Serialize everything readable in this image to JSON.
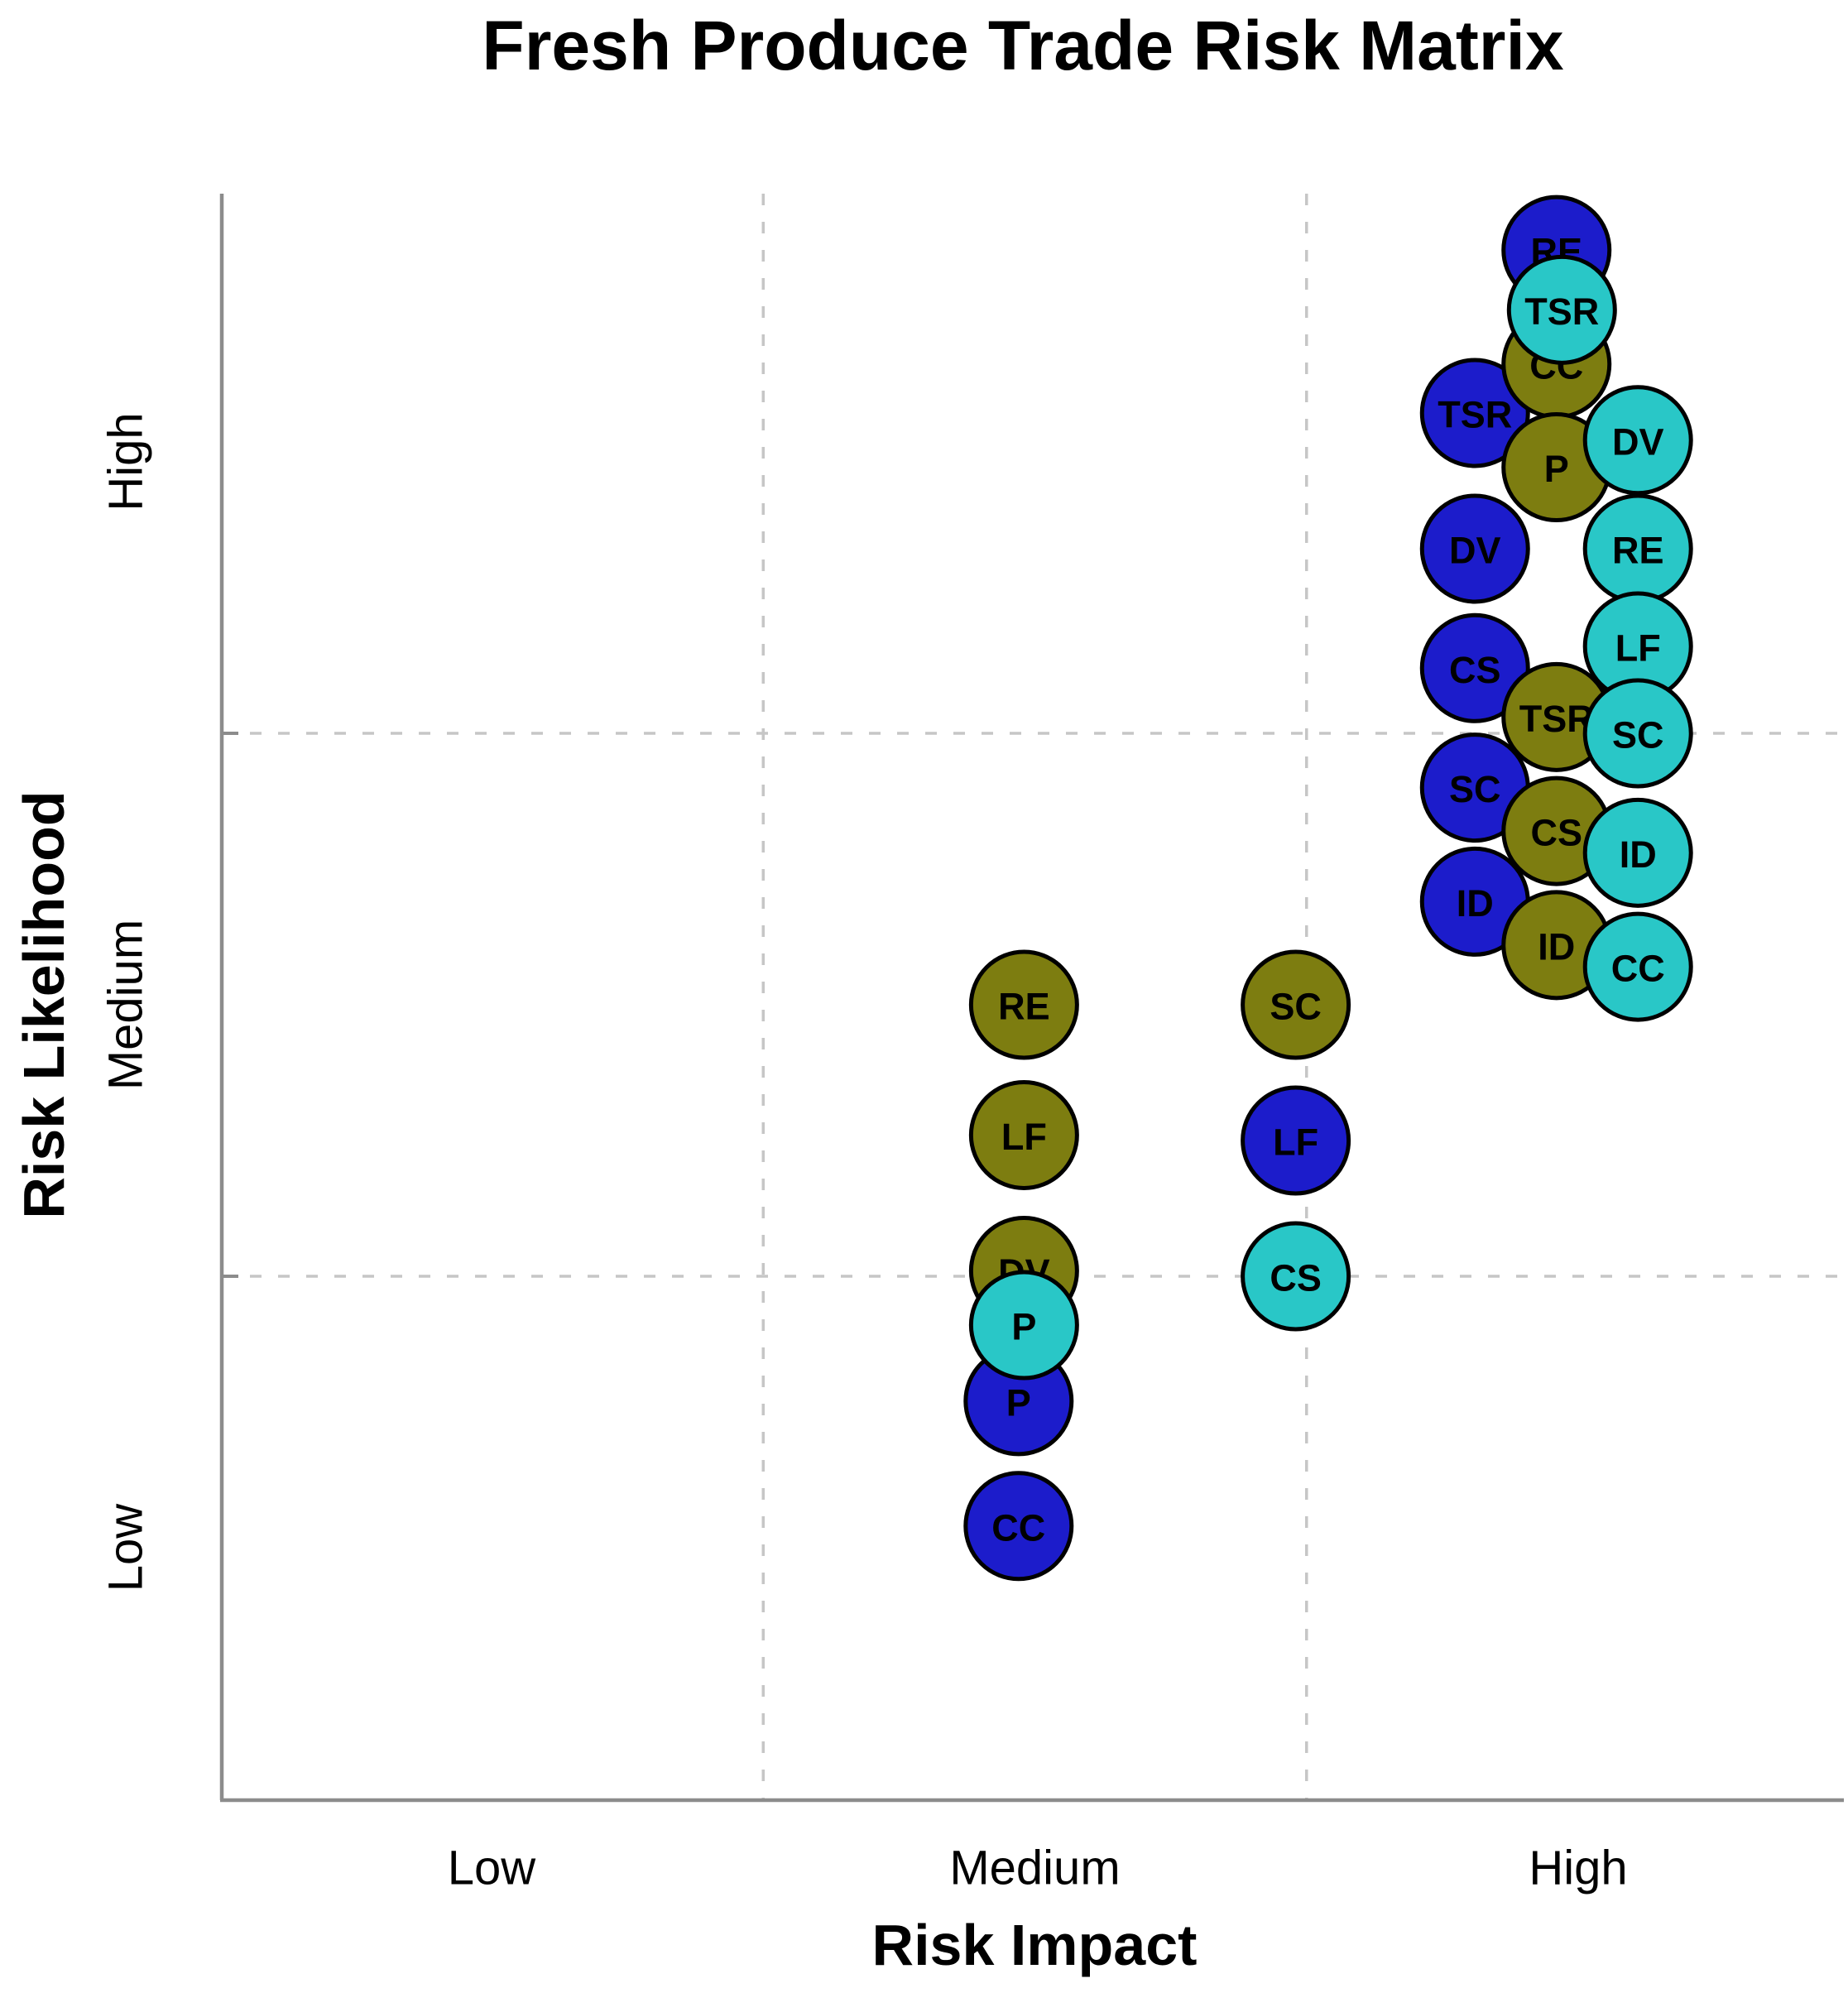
{
  "page": {
    "background": "#ffffff"
  },
  "colors": {
    "series_blue": "#1c1ccb",
    "series_olive": "#7d7d10",
    "series_teal": "#29c7c7",
    "bubble_outline": "#000000",
    "grid_gray": "#c6c6c6",
    "axis_gray": "#8c8c8c",
    "text_black": "#000000",
    "label_on_blue": "#ffffff",
    "label_on_olive": "#ffffff",
    "label_on_teal": "#000000"
  },
  "chart_data": {
    "type": "scatter",
    "subtype": "risk-matrix-bubble",
    "title": "Fresh Produce Trade Risk Matrix",
    "xlabel": "Risk Impact",
    "ylabel": "Risk Likelihood",
    "x_categories": [
      {
        "label": "Low",
        "value": 1
      },
      {
        "label": "Medium",
        "value": 2
      },
      {
        "label": "High",
        "value": 3
      }
    ],
    "y_categories": [
      {
        "label": "Low",
        "value": 1
      },
      {
        "label": "Medium",
        "value": 2
      },
      {
        "label": "High",
        "value": 3
      }
    ],
    "xlim": [
      0.5,
      3.5
    ],
    "ylim": [
      0.5,
      3.5
    ],
    "grid": {
      "x_values": [
        1.5,
        2.5
      ],
      "y_values": [
        1.5,
        2.5
      ],
      "style": "dashed"
    },
    "legend": "none",
    "marker": {
      "shape": "circle",
      "outline": "#000000",
      "labels_inside": true
    },
    "series": [
      {
        "name": "blue",
        "color": "#1c1ccb",
        "label_color": "#ffffff",
        "points": [
          {
            "label": "RE",
            "x": 2.96,
            "y": 3.39
          },
          {
            "label": "TSR",
            "x": 2.81,
            "y": 3.09
          },
          {
            "label": "DV",
            "x": 2.81,
            "y": 2.84
          },
          {
            "label": "CS",
            "x": 2.81,
            "y": 2.62
          },
          {
            "label": "SC",
            "x": 2.81,
            "y": 2.4
          },
          {
            "label": "ID",
            "x": 2.81,
            "y": 2.19
          },
          {
            "label": "LF",
            "x": 2.48,
            "y": 1.75
          },
          {
            "label": "P",
            "x": 1.97,
            "y": 1.27
          },
          {
            "label": "CC",
            "x": 1.97,
            "y": 1.04
          }
        ]
      },
      {
        "name": "olive",
        "color": "#7d7d10",
        "label_color": "#ffffff",
        "points": [
          {
            "label": "CC",
            "x": 2.96,
            "y": 3.18
          },
          {
            "label": "P",
            "x": 2.96,
            "y": 2.99
          },
          {
            "label": "TSR",
            "x": 2.96,
            "y": 2.53
          },
          {
            "label": "CS",
            "x": 2.96,
            "y": 2.32
          },
          {
            "label": "ID",
            "x": 2.96,
            "y": 2.11
          },
          {
            "label": "RE",
            "x": 1.98,
            "y": 2.0
          },
          {
            "label": "SC",
            "x": 2.48,
            "y": 2.0
          },
          {
            "label": "LF",
            "x": 1.98,
            "y": 1.76
          },
          {
            "label": "DV",
            "x": 1.98,
            "y": 1.51
          }
        ]
      },
      {
        "name": "teal",
        "color": "#29c7c7",
        "label_color": "#000000",
        "points": [
          {
            "label": "TSR",
            "x": 2.97,
            "y": 3.28
          },
          {
            "label": "DV",
            "x": 3.11,
            "y": 3.04
          },
          {
            "label": "RE",
            "x": 3.11,
            "y": 2.84
          },
          {
            "label": "LF",
            "x": 3.11,
            "y": 2.66
          },
          {
            "label": "SC",
            "x": 3.11,
            "y": 2.5
          },
          {
            "label": "ID",
            "x": 3.11,
            "y": 2.28
          },
          {
            "label": "CC",
            "x": 3.11,
            "y": 2.07
          },
          {
            "label": "CS",
            "x": 2.48,
            "y": 1.5
          },
          {
            "label": "P",
            "x": 1.98,
            "y": 1.41
          }
        ]
      }
    ]
  }
}
